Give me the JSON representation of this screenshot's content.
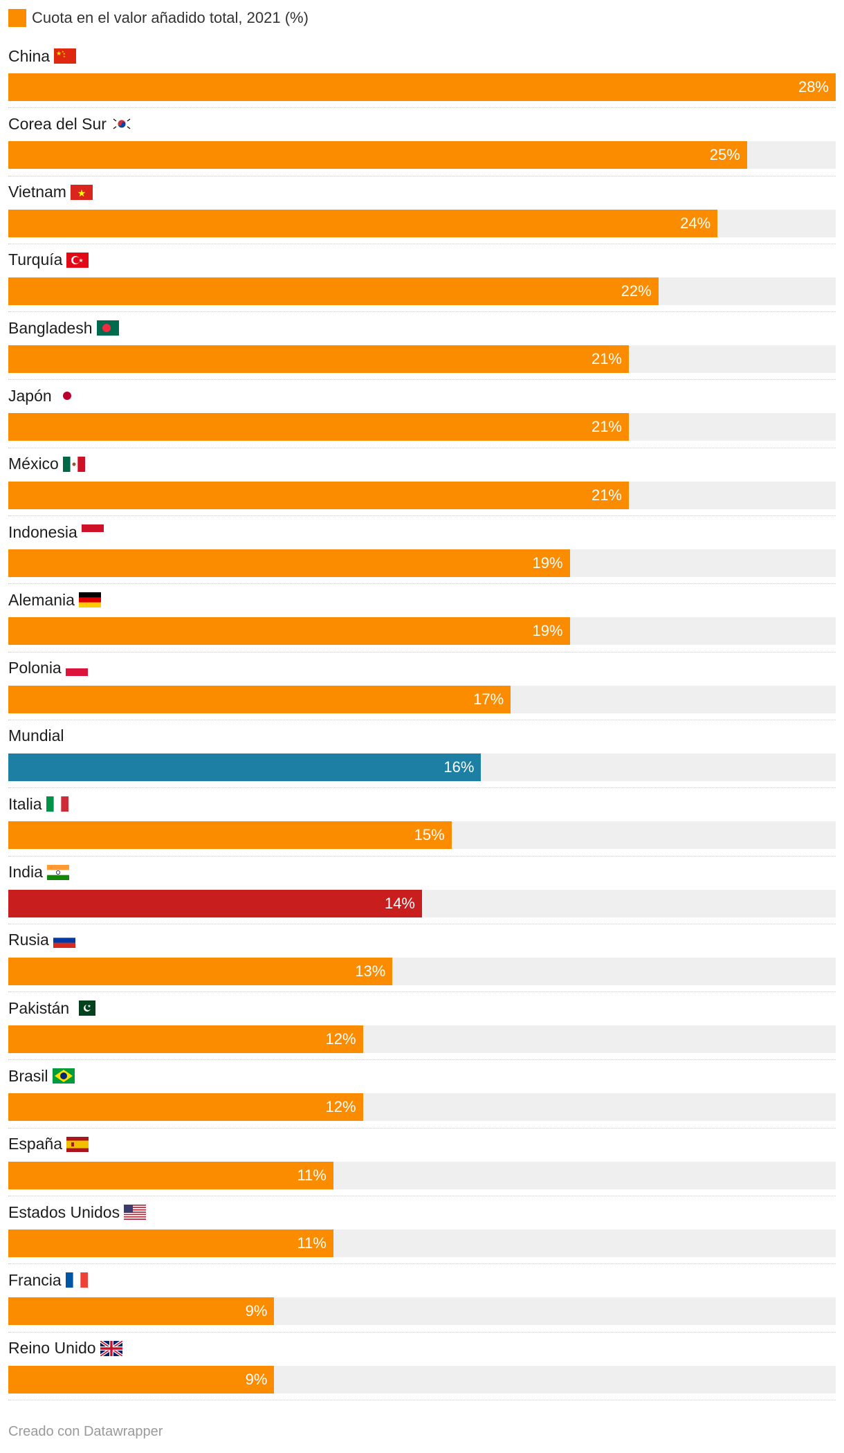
{
  "legend": {
    "label": "Cuota en el valor añadido total, 2021 (%)",
    "color": "#fb8c00"
  },
  "footer": {
    "credit": "Creado con Datawrapper"
  },
  "colors": {
    "default": "#fb8c00",
    "world": "#1c7fa3",
    "india": "#c81e1e",
    "track": "#efefef"
  },
  "chart_data": {
    "type": "bar",
    "orientation": "horizontal",
    "xlim": [
      0,
      28
    ],
    "grid": false,
    "legend_position": "top-left",
    "series": [
      {
        "name": "Cuota en el valor añadido total, 2021 (%)",
        "values": [
          28,
          25,
          24,
          22,
          21,
          21,
          21,
          19,
          19,
          17,
          16,
          15,
          14,
          13,
          12,
          12,
          11,
          11,
          9,
          9
        ]
      }
    ],
    "rows": [
      {
        "label": "China",
        "value": 28,
        "value_label": "28%",
        "flag": "china-flag",
        "color": "#fb8c00"
      },
      {
        "label": "Corea del Sur",
        "value": 25,
        "value_label": "25%",
        "flag": "south-korea-flag",
        "color": "#fb8c00"
      },
      {
        "label": "Vietnam",
        "value": 24,
        "value_label": "24%",
        "flag": "vietnam-flag",
        "color": "#fb8c00"
      },
      {
        "label": "Turquía",
        "value": 22,
        "value_label": "22%",
        "flag": "turkey-flag",
        "color": "#fb8c00"
      },
      {
        "label": "Bangladesh",
        "value": 21,
        "value_label": "21%",
        "flag": "bangladesh-flag",
        "color": "#fb8c00"
      },
      {
        "label": "Japón",
        "value": 21,
        "value_label": "21%",
        "flag": "japan-flag",
        "color": "#fb8c00"
      },
      {
        "label": "México",
        "value": 21,
        "value_label": "21%",
        "flag": "mexico-flag",
        "color": "#fb8c00"
      },
      {
        "label": "Indonesia",
        "value": 19,
        "value_label": "19%",
        "flag": "indonesia-flag",
        "color": "#fb8c00"
      },
      {
        "label": "Alemania",
        "value": 19,
        "value_label": "19%",
        "flag": "germany-flag",
        "color": "#fb8c00"
      },
      {
        "label": "Polonia",
        "value": 17,
        "value_label": "17%",
        "flag": "poland-flag",
        "color": "#fb8c00"
      },
      {
        "label": "Mundial",
        "value": 16,
        "value_label": "16%",
        "flag": "",
        "color": "#1c7fa3"
      },
      {
        "label": "Italia",
        "value": 15,
        "value_label": "15%",
        "flag": "italy-flag",
        "color": "#fb8c00"
      },
      {
        "label": "India",
        "value": 14,
        "value_label": "14%",
        "flag": "india-flag",
        "color": "#c81e1e"
      },
      {
        "label": "Rusia",
        "value": 13,
        "value_label": "13%",
        "flag": "russia-flag",
        "color": "#fb8c00"
      },
      {
        "label": "Pakistán",
        "value": 12,
        "value_label": "12%",
        "flag": "pakistan-flag",
        "color": "#fb8c00"
      },
      {
        "label": "Brasil",
        "value": 12,
        "value_label": "12%",
        "flag": "brazil-flag",
        "color": "#fb8c00"
      },
      {
        "label": "España",
        "value": 11,
        "value_label": "11%",
        "flag": "spain-flag",
        "color": "#fb8c00"
      },
      {
        "label": "Estados Unidos",
        "value": 11,
        "value_label": "11%",
        "flag": "usa-flag",
        "color": "#fb8c00"
      },
      {
        "label": "Francia",
        "value": 9,
        "value_label": "9%",
        "flag": "france-flag",
        "color": "#fb8c00"
      },
      {
        "label": "Reino Unido",
        "value": 9,
        "value_label": "9%",
        "flag": "uk-flag",
        "color": "#fb8c00"
      }
    ]
  }
}
